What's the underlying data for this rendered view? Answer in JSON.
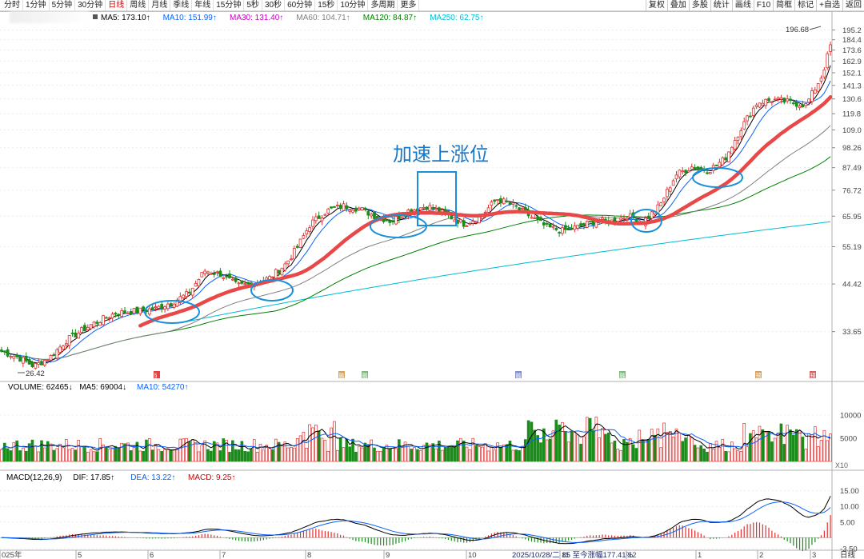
{
  "periods": [
    "分时",
    "1分钟",
    "5分钟",
    "30分钟",
    "日线",
    "周线",
    "月线",
    "季线",
    "年线",
    "15分钟",
    "5秒",
    "30秒",
    "60分钟",
    "15秒",
    "10分钟",
    "多周期",
    "更多"
  ],
  "active_period": "日线",
  "tools": [
    "复权",
    "叠加",
    "多股",
    "统计",
    "画线",
    "F10",
    "简框",
    "标记",
    "+自选",
    "返回"
  ],
  "ma_legend": [
    {
      "text": "MA5: 173.10↑",
      "color": "#000000"
    },
    {
      "text": "MA10: 151.99↑",
      "color": "#0a60ff"
    },
    {
      "text": "MA30: 131.40↑",
      "color": "#c000c0"
    },
    {
      "text": "MA60: 104.71↑",
      "color": "#808080"
    },
    {
      "text": "MA120: 84.87↑",
      "color": "#008000"
    },
    {
      "text": "MA250: 62.75↑",
      "color": "#00bcd4"
    }
  ],
  "vol_legend": [
    {
      "text": "VOLUME: 62465↓",
      "color": "#000000"
    },
    {
      "text": "MA5: 69004↓",
      "color": "#000000"
    },
    {
      "text": "MA10: 54270↑",
      "color": "#0a60ff"
    }
  ],
  "macd_legend": [
    {
      "text": "MACD(12,26,9)",
      "color": "#000000"
    },
    {
      "text": "DIF: 17.85↑",
      "color": "#000000"
    },
    {
      "text": "DEA: 13.22↑",
      "color": "#0a60ff"
    },
    {
      "text": "MACD: 9.25↑",
      "color": "#d00000"
    }
  ],
  "annotation_text": "加速上涨位",
  "chart_data": {
    "type": "candlestick",
    "price_axis": {
      "scale": "log",
      "ticks": [
        195.2,
        184.4,
        173.6,
        162.9,
        152.1,
        141.3,
        130.6,
        119.8,
        109.0,
        98.26,
        87.49,
        76.72,
        65.95,
        55.19,
        44.42,
        33.65
      ]
    },
    "volume_axis": {
      "ticks": [
        10000,
        5000
      ],
      "unit_label": "X10"
    },
    "macd_axis": {
      "ticks": [
        15.0,
        10.0,
        5.0,
        -3.5
      ]
    },
    "x_labels": [
      "025年",
      "5",
      "6",
      "7",
      "8",
      "9",
      "10",
      "11",
      "12",
      "1",
      "2",
      "3"
    ],
    "high_label": "196.68",
    "low_label": "26.42",
    "status_text": "2025/10/28/二 85 至今涨幅177.41%",
    "corner_label": "日线",
    "event_markers": [
      "§",
      "融",
      "融",
      "融",
      "融",
      "预",
      "预"
    ],
    "series_colors": {
      "up": "#e03030",
      "down": "#1a8c1a",
      "ma5": "#000000",
      "ma10": "#0a60ff",
      "ma30": "#c000c0",
      "ma60": "#808080",
      "ma120": "#008000",
      "ma250": "#00bcd4",
      "highlight": "#e84848",
      "annotation": "#1a90d8"
    },
    "trend_points": [
      [
        0,
        30
      ],
      [
        10,
        29
      ],
      [
        20,
        27.5
      ],
      [
        30,
        29
      ],
      [
        40,
        32
      ],
      [
        55,
        35
      ],
      [
        70,
        37.5
      ],
      [
        85,
        38
      ],
      [
        95,
        38.5
      ],
      [
        105,
        40
      ],
      [
        115,
        42
      ],
      [
        125,
        48
      ],
      [
        135,
        47
      ],
      [
        145,
        44
      ],
      [
        155,
        44.5
      ],
      [
        165,
        46
      ],
      [
        175,
        50
      ],
      [
        182,
        55
      ],
      [
        190,
        63
      ],
      [
        200,
        68
      ],
      [
        210,
        70
      ],
      [
        220,
        69
      ],
      [
        230,
        66
      ],
      [
        240,
        64
      ],
      [
        250,
        68
      ],
      [
        262,
        70
      ],
      [
        272,
        67
      ],
      [
        285,
        63
      ],
      [
        295,
        66
      ],
      [
        305,
        73
      ],
      [
        315,
        70
      ],
      [
        325,
        66
      ],
      [
        335,
        62
      ],
      [
        345,
        60.5
      ],
      [
        355,
        62
      ],
      [
        365,
        64
      ],
      [
        375,
        64
      ],
      [
        385,
        66
      ],
      [
        395,
        64
      ],
      [
        405,
        70
      ],
      [
        415,
        84
      ],
      [
        425,
        88
      ],
      [
        435,
        86
      ],
      [
        445,
        92
      ],
      [
        455,
        110
      ],
      [
        465,
        128
      ],
      [
        475,
        130
      ],
      [
        485,
        128
      ],
      [
        495,
        126
      ],
      [
        505,
        150
      ],
      [
        512,
        190
      ]
    ]
  }
}
